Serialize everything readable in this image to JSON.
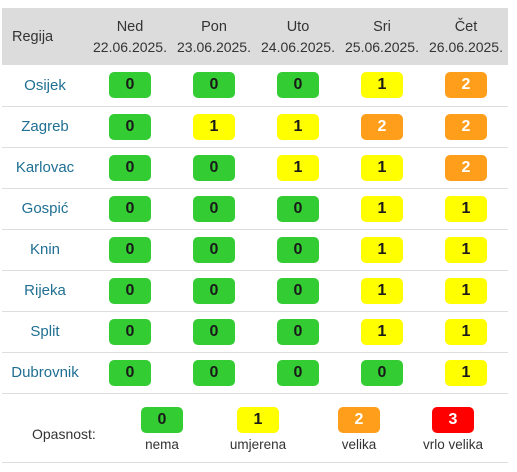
{
  "header": {
    "region_label": "Regija",
    "days": [
      {
        "name": "Ned",
        "date": "22.06.2025."
      },
      {
        "name": "Pon",
        "date": "23.06.2025."
      },
      {
        "name": "Uto",
        "date": "24.06.2025."
      },
      {
        "name": "Sri",
        "date": "25.06.2025."
      },
      {
        "name": "Čet",
        "date": "26.06.2025."
      }
    ]
  },
  "rows": [
    {
      "region": "Osijek",
      "values": [
        "0",
        "0",
        "0",
        "1",
        "2"
      ]
    },
    {
      "region": "Zagreb",
      "values": [
        "0",
        "1",
        "1",
        "2",
        "2"
      ]
    },
    {
      "region": "Karlovac",
      "values": [
        "0",
        "0",
        "1",
        "1",
        "2"
      ]
    },
    {
      "region": "Gospić",
      "values": [
        "0",
        "0",
        "0",
        "1",
        "1"
      ]
    },
    {
      "region": "Knin",
      "values": [
        "0",
        "0",
        "0",
        "1",
        "1"
      ]
    },
    {
      "region": "Rijeka",
      "values": [
        "0",
        "0",
        "0",
        "1",
        "1"
      ]
    },
    {
      "region": "Split",
      "values": [
        "0",
        "0",
        "0",
        "1",
        "1"
      ]
    },
    {
      "region": "Dubrovnik",
      "values": [
        "0",
        "0",
        "0",
        "0",
        "1"
      ]
    }
  ],
  "legend": {
    "title": "Opasnost:",
    "items": [
      {
        "value": "0",
        "label": "nema"
      },
      {
        "value": "1",
        "label": "umjerena"
      },
      {
        "value": "2",
        "label": "velika"
      },
      {
        "value": "3",
        "label": "vrlo velika"
      }
    ]
  },
  "colors": {
    "level_0": "#33cc33",
    "level_1": "#ffff00",
    "level_2": "#ff9e1b",
    "level_3": "#ff0000",
    "header_bg": "#dcdcdc",
    "region_link": "#1f6f93"
  }
}
